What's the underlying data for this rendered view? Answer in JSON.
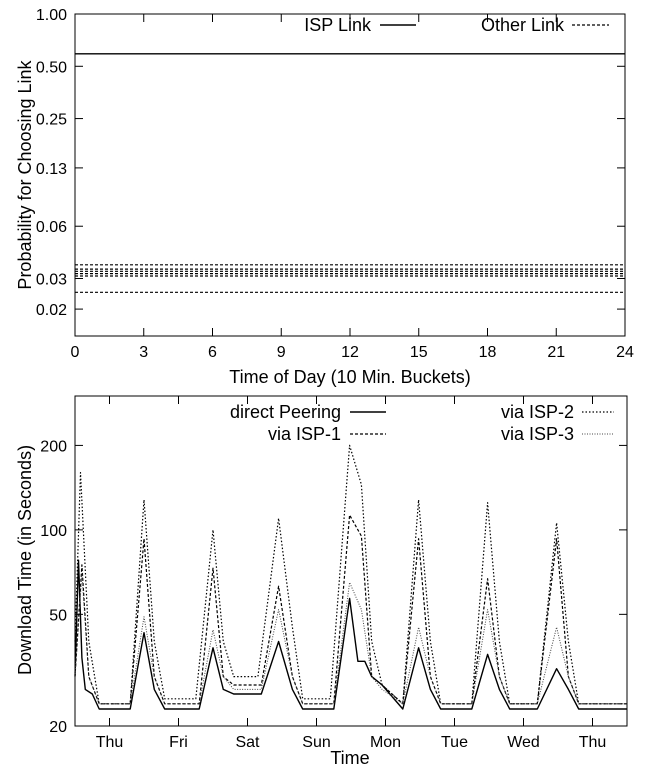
{
  "chart_data": [
    {
      "type": "line",
      "xlabel": "Time of Day (10 Min. Buckets)",
      "ylabel": "Probability for Choosing Link",
      "xlim": [
        0,
        24
      ],
      "ylim": [
        0.014,
        1.0
      ],
      "yscale": "log",
      "xticks": [
        "0",
        "3",
        "6",
        "9",
        "12",
        "15",
        "18",
        "21",
        "24"
      ],
      "yticks": [
        "1.00",
        "0.50",
        "0.25",
        "0.13",
        "0.06",
        "0.03",
        "0.02"
      ],
      "ytick_values": [
        1.0,
        0.5,
        0.25,
        0.13,
        0.06,
        0.03,
        0.02
      ],
      "grid": false,
      "legend_position": "top",
      "legend": [
        {
          "name": "ISP Link",
          "style": "solid"
        },
        {
          "name": "Other Link",
          "style": "dashed"
        }
      ],
      "series": [
        {
          "name": "ISP Link",
          "style": "solid",
          "x": [
            0,
            24
          ],
          "y": [
            0.59,
            0.59
          ]
        },
        {
          "style": "dashed",
          "x": [
            0,
            24
          ],
          "y": [
            0.036,
            0.036
          ]
        },
        {
          "style": "dashed",
          "x": [
            0,
            24
          ],
          "y": [
            0.034,
            0.034
          ]
        },
        {
          "style": "dashed",
          "x": [
            0,
            24
          ],
          "y": [
            0.033,
            0.033
          ]
        },
        {
          "style": "dashed",
          "x": [
            0,
            24
          ],
          "y": [
            0.032,
            0.032
          ]
        },
        {
          "style": "dashed",
          "x": [
            0,
            24
          ],
          "y": [
            0.031,
            0.031
          ]
        },
        {
          "style": "dashed",
          "x": [
            0,
            24
          ],
          "y": [
            0.025,
            0.025
          ]
        }
      ]
    },
    {
      "type": "line",
      "xlabel": "Time",
      "ylabel": "Download Time (in Seconds)",
      "ylim": [
        20,
        300
      ],
      "yscale": "log",
      "xlim": [
        0,
        8
      ],
      "yticks": [
        "20",
        "50",
        "100",
        "200"
      ],
      "ytick_values": [
        20,
        50,
        100,
        200
      ],
      "xticks": [
        "Thu",
        "Fri",
        "Sat",
        "Sun",
        "Mon",
        "Tue",
        "Wed",
        "Thu"
      ],
      "xtick_values": [
        0.5,
        1.5,
        2.5,
        3.5,
        4.5,
        5.5,
        6.5,
        7.5
      ],
      "grid": false,
      "legend_position": "top",
      "series": [
        {
          "name": "direct Peering",
          "style": "solid",
          "x": [
            0,
            0.05,
            0.1,
            0.15,
            0.25,
            0.35,
            0.8,
            1.0,
            1.15,
            1.3,
            1.8,
            2.0,
            2.15,
            2.3,
            2.7,
            2.95,
            3.15,
            3.3,
            3.75,
            3.98,
            4.1,
            4.2,
            4.3,
            4.45,
            4.75,
            4.98,
            5.15,
            5.3,
            5.75,
            5.98,
            6.15,
            6.3,
            6.7,
            6.98,
            7.15,
            7.3,
            7.6,
            8.0
          ],
          "y": [
            30,
            78,
            35,
            27,
            26,
            23,
            23,
            43,
            27,
            23,
            23,
            38,
            27,
            26,
            26,
            40,
            27,
            23,
            23,
            57,
            34,
            34,
            30,
            28,
            23,
            38,
            27,
            23,
            23,
            36,
            27,
            23,
            23,
            32,
            27,
            23,
            23,
            23
          ]
        },
        {
          "name": "via ISP-1",
          "style": "dashed",
          "x": [
            0,
            0.1,
            0.2,
            0.35,
            0.8,
            1.0,
            1.15,
            1.3,
            1.8,
            2.0,
            2.15,
            2.3,
            2.7,
            2.95,
            3.15,
            3.3,
            3.75,
            3.98,
            4.15,
            4.3,
            4.45,
            4.75,
            4.98,
            5.15,
            5.3,
            5.75,
            5.98,
            6.15,
            6.3,
            6.7,
            6.98,
            7.15,
            7.3,
            7.6,
            8.0
          ],
          "y": [
            30,
            75,
            30,
            24,
            24,
            93,
            30,
            24,
            24,
            73,
            30,
            28,
            28,
            63,
            30,
            24,
            24,
            113,
            95,
            30,
            28,
            24,
            93,
            30,
            24,
            24,
            67,
            30,
            24,
            24,
            93,
            30,
            24,
            24,
            24
          ]
        },
        {
          "name": "via ISP-2",
          "style": "dotted",
          "x": [
            0,
            0.08,
            0.2,
            0.35,
            0.8,
            1.0,
            1.15,
            1.3,
            1.75,
            2.0,
            2.15,
            2.3,
            2.65,
            2.95,
            3.15,
            3.3,
            3.7,
            3.98,
            4.15,
            4.3,
            4.45,
            4.75,
            4.98,
            5.15,
            5.3,
            5.75,
            5.98,
            6.15,
            6.3,
            6.7,
            6.98,
            7.15,
            7.3,
            7.6,
            8.0
          ],
          "y": [
            40,
            160,
            40,
            24,
            24,
            128,
            40,
            25,
            25,
            100,
            40,
            30,
            30,
            110,
            45,
            25,
            25,
            200,
            145,
            40,
            28,
            24,
            128,
            40,
            24,
            24,
            125,
            40,
            24,
            24,
            106,
            40,
            24,
            24,
            24
          ]
        },
        {
          "name": "via ISP-3",
          "style": "fine-dotted",
          "x": [
            0,
            0.1,
            0.2,
            0.35,
            0.8,
            1.0,
            1.15,
            1.3,
            1.8,
            2.0,
            2.15,
            2.3,
            2.7,
            2.95,
            3.15,
            3.3,
            3.75,
            3.98,
            4.15,
            4.3,
            4.45,
            4.75,
            4.98,
            5.15,
            5.3,
            5.75,
            5.98,
            6.15,
            6.3,
            6.7,
            6.98,
            7.15,
            7.3,
            7.6,
            8.0
          ],
          "y": [
            30,
            70,
            30,
            24,
            24,
            49,
            30,
            24,
            24,
            44,
            30,
            27,
            27,
            52,
            30,
            24,
            24,
            65,
            52,
            30,
            27,
            24,
            45,
            30,
            24,
            24,
            52,
            30,
            24,
            24,
            45,
            30,
            24,
            24,
            24
          ]
        }
      ]
    }
  ]
}
